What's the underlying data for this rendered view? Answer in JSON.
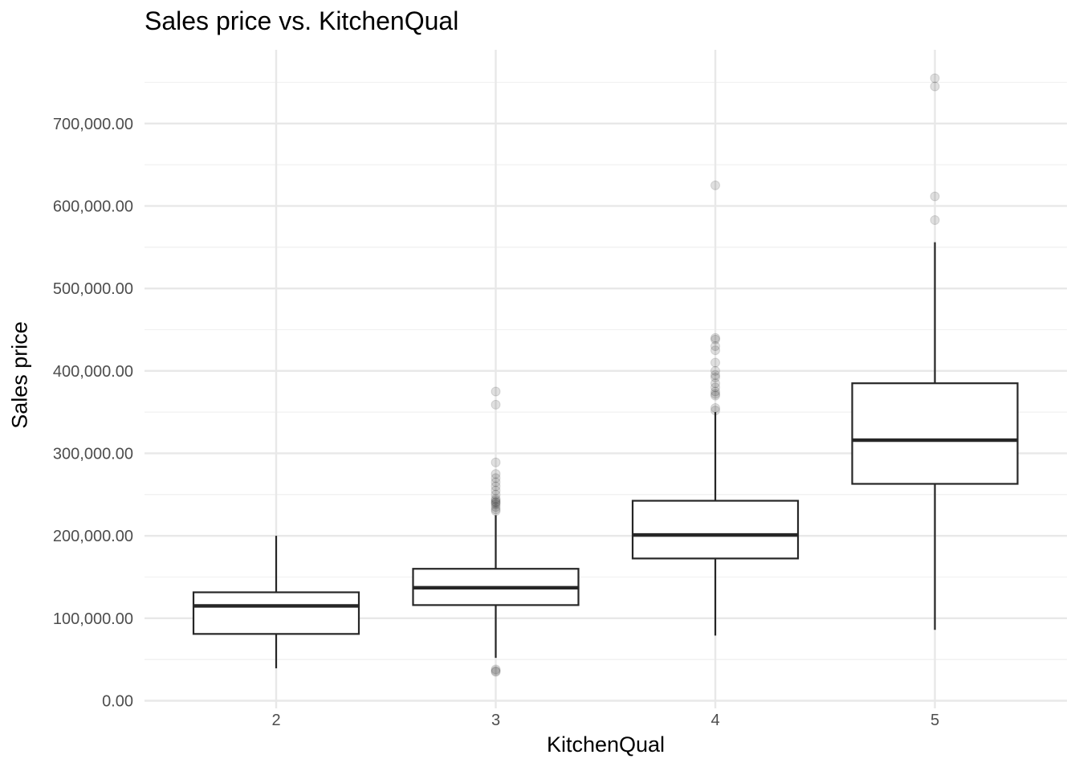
{
  "chart_data": {
    "type": "box",
    "title": "Sales price vs. KitchenQual",
    "xlabel": "KitchenQual",
    "ylabel": "Sales price",
    "ylim": [
      -5000,
      785000
    ],
    "yticks": [
      0,
      100000,
      200000,
      300000,
      400000,
      500000,
      600000,
      700000
    ],
    "ytick_labels": [
      "0.00",
      "100,000.00",
      "200,000.00",
      "300,000.00",
      "400,000.00",
      "500,000.00",
      "600,000.00",
      "700,000.00"
    ],
    "grid": true,
    "categories": [
      "2",
      "3",
      "4",
      "5"
    ],
    "boxes": [
      {
        "category": "2",
        "whisker_low": 39300,
        "q1": 81000,
        "median": 115000,
        "q3": 131500,
        "whisker_high": 200000,
        "outliers": []
      },
      {
        "category": "3",
        "whisker_low": 52000,
        "q1": 116000,
        "median": 137000,
        "q3": 160000,
        "whisker_high": 225000,
        "outliers": [
          34900,
          36000,
          38000,
          230000,
          232000,
          235000,
          238000,
          240000,
          241000,
          243000,
          245000,
          250000,
          255000,
          260000,
          265000,
          270000,
          275000,
          289000,
          359000,
          375000
        ]
      },
      {
        "category": "4",
        "whisker_low": 79000,
        "q1": 172500,
        "median": 201000,
        "q3": 242500,
        "whisker_high": 350000,
        "outliers": [
          352000,
          355000,
          370000,
          372000,
          375000,
          380000,
          385000,
          392000,
          395000,
          400000,
          410000,
          425000,
          430000,
          438000,
          440000,
          625000
        ]
      },
      {
        "category": "5",
        "whisker_low": 86000,
        "q1": 263000,
        "median": 316000,
        "q3": 385000,
        "whisker_high": 556000,
        "outliers": [
          582900,
          611657,
          745000,
          755000
        ]
      }
    ],
    "colors": {
      "box_stroke": "#262626",
      "outlier": "#000000",
      "grid_major": "#e8e8e8",
      "grid_minor": "#f1f1f1",
      "tick_text": "#4d4d4d"
    }
  }
}
